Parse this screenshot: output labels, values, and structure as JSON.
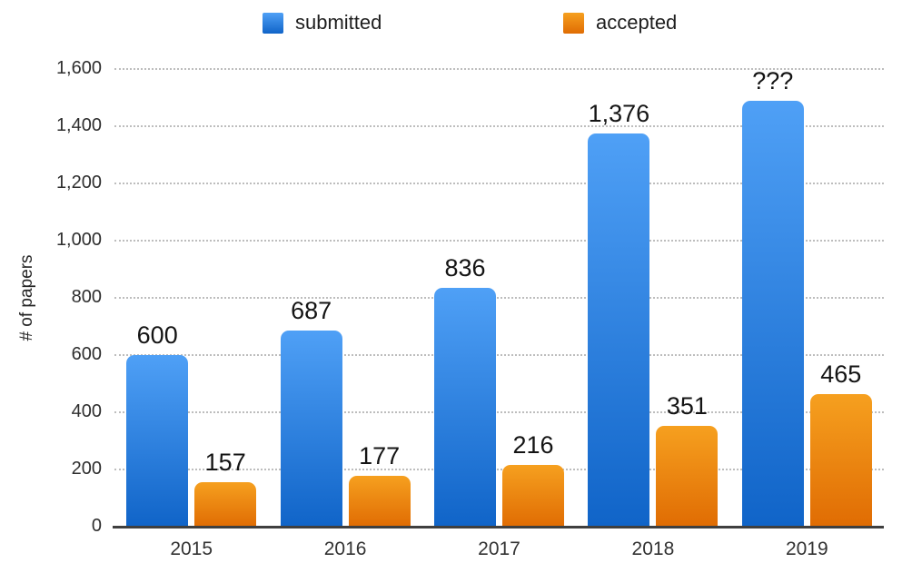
{
  "legend": {
    "items": [
      {
        "label": "submitted",
        "color_top": "#4FA0F6",
        "color_bottom": "#1064C8"
      },
      {
        "label": "accepted",
        "color_top": "#F6A01F",
        "color_bottom": "#E06C03"
      }
    ]
  },
  "chart_data": {
    "type": "bar",
    "title": "",
    "xlabel": "",
    "ylabel": "# of papers",
    "categories": [
      "2015",
      "2016",
      "2017",
      "2018",
      "2019"
    ],
    "series": [
      {
        "name": "submitted",
        "values": [
          600,
          687,
          836,
          1376,
          1490
        ],
        "labels": [
          "600",
          "687",
          "836",
          "1,376",
          "???"
        ],
        "color_top": "#4FA0F6",
        "color_bottom": "#1064C8"
      },
      {
        "name": "accepted",
        "values": [
          157,
          177,
          216,
          351,
          465
        ],
        "labels": [
          "157",
          "177",
          "216",
          "351",
          "465"
        ],
        "color_top": "#F6A01F",
        "color_bottom": "#E06C03"
      }
    ],
    "ylim": [
      0,
      1600
    ],
    "ytick_step": 200,
    "yticks": [
      "0",
      "200",
      "400",
      "600",
      "800",
      "1,000",
      "1,200",
      "1,400",
      "1,600"
    ],
    "grid": true,
    "gridline_style": "dotted",
    "legend_position": "top",
    "note": "2019 submitted value shown as ??? (bar height approx 1490, estimated from gridlines)"
  }
}
